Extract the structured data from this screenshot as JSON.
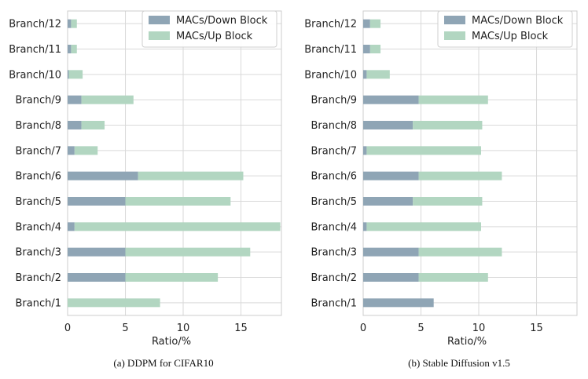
{
  "colors": {
    "down_block": "#8fa5b5",
    "up_block": "#b2d6c1",
    "grid": "#d9d9d9",
    "spine": "#cccccc",
    "legend_border": "#cfcfcf"
  },
  "chart_data": [
    {
      "type": "bar",
      "orientation": "horizontal",
      "stacked": true,
      "caption": "(a) DDPM for CIFAR10",
      "xlabel": "Ratio/%",
      "xlim": [
        0,
        18.5
      ],
      "xticks": [
        0,
        5,
        10,
        15
      ],
      "grid": true,
      "legend_position": "top-right",
      "categories": [
        "Branch/12",
        "Branch/11",
        "Branch/10",
        "Branch/9",
        "Branch/8",
        "Branch/7",
        "Branch/6",
        "Branch/5",
        "Branch/4",
        "Branch/3",
        "Branch/2",
        "Branch/1"
      ],
      "series": [
        {
          "name": "MACs/Down Block",
          "values": [
            0.3,
            0.3,
            0.1,
            1.2,
            1.2,
            0.6,
            6.1,
            5.0,
            0.6,
            5.0,
            5.0,
            0.0
          ]
        },
        {
          "name": "MACs/Up Block",
          "values": [
            0.5,
            0.5,
            1.2,
            4.5,
            2.0,
            2.0,
            9.1,
            9.1,
            17.8,
            10.8,
            8.0,
            8.0
          ]
        }
      ]
    },
    {
      "type": "bar",
      "orientation": "horizontal",
      "stacked": true,
      "caption": "(b) Stable Diffusion v1.5",
      "xlabel": "Ratio/%",
      "xlim": [
        0,
        18.5
      ],
      "xticks": [
        0,
        5,
        10,
        15
      ],
      "grid": true,
      "legend_position": "top-right",
      "categories": [
        "Branch/12",
        "Branch/11",
        "Branch/10",
        "Branch/9",
        "Branch/8",
        "Branch/7",
        "Branch/6",
        "Branch/5",
        "Branch/4",
        "Branch/3",
        "Branch/2",
        "Branch/1"
      ],
      "series": [
        {
          "name": "MACs/Down Block",
          "values": [
            0.6,
            0.6,
            0.3,
            4.8,
            4.3,
            0.3,
            4.8,
            4.3,
            0.3,
            4.8,
            4.8,
            6.1
          ]
        },
        {
          "name": "MACs/Up Block",
          "values": [
            0.9,
            0.9,
            2.0,
            6.0,
            6.0,
            9.9,
            7.2,
            6.0,
            9.9,
            7.2,
            6.0,
            0.0
          ]
        }
      ]
    }
  ]
}
